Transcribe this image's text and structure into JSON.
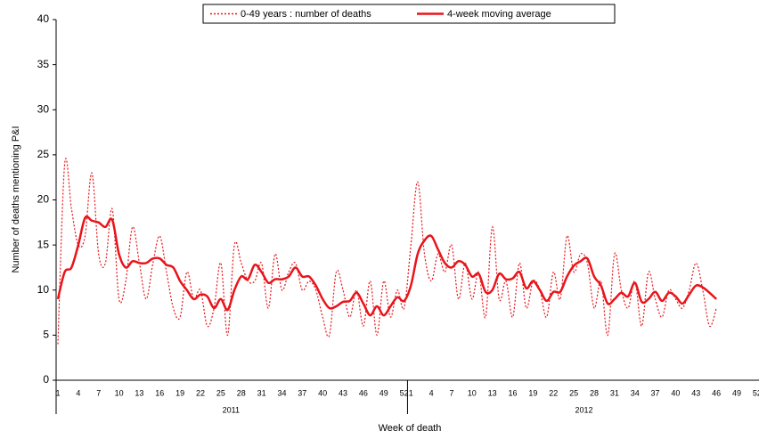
{
  "chart_data": {
    "type": "line",
    "y_label": "Number of deaths mentioning P&I",
    "x_label": "Week of death",
    "x_groups": [
      "2011",
      "2012"
    ],
    "categories": [
      "1",
      null,
      null,
      "4",
      null,
      null,
      "7",
      null,
      null,
      "10",
      null,
      null,
      "13",
      null,
      null,
      "16",
      null,
      null,
      "19",
      null,
      null,
      "22",
      null,
      null,
      "25",
      null,
      null,
      "28",
      null,
      null,
      "31",
      null,
      null,
      "34",
      null,
      null,
      "37",
      null,
      null,
      "40",
      null,
      null,
      "43",
      null,
      null,
      "46",
      null,
      null,
      "49",
      null,
      null,
      "52",
      "1",
      null,
      null,
      "4",
      null,
      null,
      "7",
      null,
      null,
      "10",
      null,
      null,
      "13",
      null,
      null,
      "16",
      null,
      null,
      "19",
      null,
      null,
      "22",
      null,
      null,
      "25",
      null,
      null,
      "28",
      null,
      null,
      "31",
      null,
      null,
      "34",
      null,
      null,
      "37",
      null,
      null,
      "40",
      null,
      null,
      "43",
      null,
      null,
      "46",
      null,
      null,
      "49",
      null,
      null,
      "52"
    ],
    "series": [
      {
        "name": "0-49 years : number of deaths",
        "color": "#e8141a",
        "style": "dotted",
        "values": [
          4,
          24,
          19,
          15,
          16,
          23,
          14,
          13,
          19,
          9,
          11,
          17,
          13,
          9,
          13,
          16,
          12,
          8,
          7,
          12,
          9,
          10,
          6,
          8,
          13,
          5,
          15,
          13,
          11,
          11,
          13,
          8,
          14,
          10,
          12,
          13,
          10,
          11,
          10,
          7,
          5,
          12,
          10,
          7,
          10,
          6,
          11,
          5,
          11,
          7,
          10,
          8,
          15,
          22,
          14,
          11,
          14,
          12,
          15,
          9,
          13,
          9,
          12,
          7,
          17,
          9,
          11,
          7,
          13,
          8,
          11,
          10,
          7,
          12,
          9,
          16,
          12,
          14,
          13,
          8,
          11,
          5,
          14,
          10,
          8,
          11,
          6,
          12,
          9,
          7,
          10,
          9,
          8,
          10,
          13,
          10,
          6,
          8,
          null,
          null,
          null,
          null,
          null,
          null
        ]
      },
      {
        "name": "4-week moving average",
        "color": "#e8141a",
        "style": "solid",
        "values": [
          9,
          12,
          12.5,
          15,
          18,
          17.7,
          17.5,
          17,
          17.8,
          14,
          12.5,
          13.2,
          13,
          13,
          13.5,
          13.5,
          12.8,
          12.5,
          11,
          10,
          9,
          9.5,
          9.3,
          8,
          9,
          7.8,
          10,
          11.5,
          11.2,
          12.8,
          12,
          10.8,
          11.2,
          11.2,
          11.5,
          12.5,
          11.5,
          11.5,
          10.5,
          9,
          8,
          8.2,
          8.7,
          8.8,
          9.7,
          8.5,
          7.2,
          8.2,
          7.2,
          8.2,
          9.2,
          8.8,
          10.5,
          14,
          15.5,
          16,
          14.5,
          13,
          12.5,
          13.2,
          12.8,
          11.5,
          11.8,
          9.8,
          10,
          11.8,
          11.2,
          11.3,
          12,
          10.2,
          11,
          10,
          8.8,
          9.8,
          9.8,
          11.5,
          12.7,
          13.2,
          13.5,
          11.5,
          10.5,
          8.5,
          9,
          9.7,
          9.3,
          10.8,
          8.7,
          9,
          9.8,
          8.8,
          9.7,
          9.3,
          8.5,
          9.5,
          10.5,
          10.3,
          9.7,
          9,
          null,
          null,
          null,
          null,
          null,
          null
        ]
      }
    ],
    "ylim": [
      0,
      40
    ],
    "yticks": [
      0,
      5,
      10,
      15,
      20,
      25,
      30,
      35,
      40
    ],
    "grid": false,
    "legend": "top"
  }
}
